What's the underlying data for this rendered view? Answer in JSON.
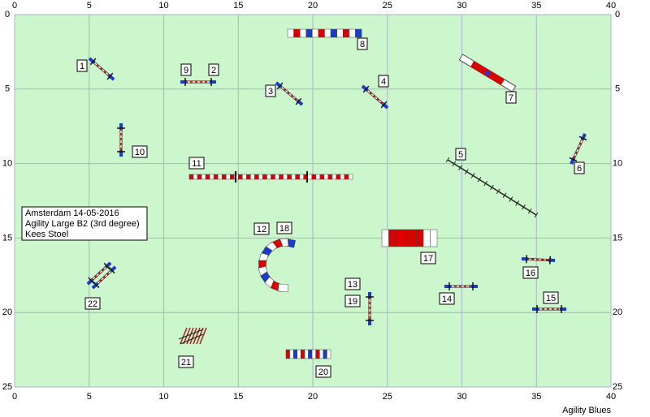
{
  "x_axis": {
    "ticks": [
      0,
      5,
      10,
      15,
      20,
      25,
      30,
      35,
      40
    ]
  },
  "y_axis": {
    "ticks": [
      0,
      5,
      10,
      15,
      20,
      25
    ]
  },
  "info": [
    "Amsterdam 14-05-2016",
    "Agility Large B2 (3rd degree)",
    "Kees Stoel"
  ],
  "obstacle_labels": [
    "1",
    "2",
    "3",
    "4",
    "5",
    "6",
    "7",
    "8",
    "9",
    "10",
    "11",
    "12",
    "13",
    "14",
    "15",
    "16",
    "17",
    "18",
    "19",
    "20",
    "21",
    "22"
  ],
  "footer": "Agility Blues"
}
